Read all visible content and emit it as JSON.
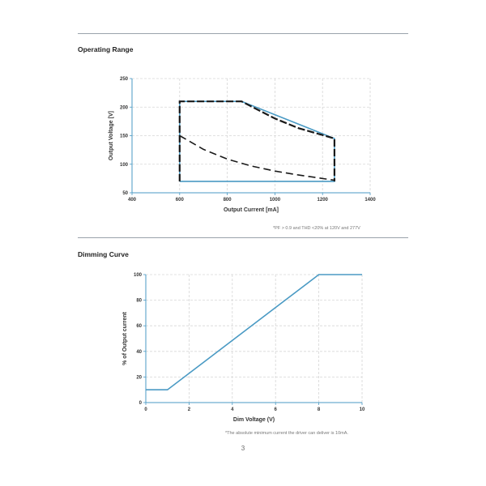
{
  "sections": {
    "operating": {
      "title": "Operating Range",
      "footnote": "*PF > 0.9 and THD <20% at 120V and 277V"
    },
    "dimming": {
      "title": "Dimming Curve",
      "footnote": "*The absolute minimum current the driver can deliver is 10mA."
    }
  },
  "page_number": "3",
  "colors": {
    "blue": "#4a9ac4",
    "black": "#1a1a1a",
    "grid": "#d6d6d6",
    "axis": "#4a9ac4"
  },
  "chart_data": [
    {
      "type": "line",
      "title": "",
      "xlabel": "Output Current [mA]",
      "ylabel": "Output Voltage [V]",
      "xlim": [
        400,
        1400
      ],
      "ylim": [
        50,
        250
      ],
      "xticks": [
        400,
        600,
        800,
        1000,
        1200,
        1400
      ],
      "yticks": [
        50,
        100,
        150,
        200,
        250
      ],
      "grid": true,
      "series": [
        {
          "style": "solid-blue",
          "x": [
            600,
            600,
            860,
            1250,
            1250,
            600
          ],
          "y": [
            70,
            210,
            210,
            145,
            70,
            70
          ]
        },
        {
          "style": "dashed-black-boundary",
          "x": [
            600,
            600,
            860,
            930,
            1000,
            1100,
            1250,
            1250
          ],
          "y": [
            70,
            210,
            210,
            195,
            180,
            163,
            145,
            70
          ]
        },
        {
          "style": "dashed-black-curve",
          "x": [
            600,
            700,
            800,
            900,
            1000,
            1100,
            1250
          ],
          "y": [
            150,
            126,
            109,
            97,
            88,
            81,
            72
          ]
        }
      ]
    },
    {
      "type": "line",
      "title": "",
      "xlabel": "Dim Voltage (V)",
      "ylabel": "% of Output current",
      "xlim": [
        0,
        10
      ],
      "ylim": [
        0,
        100
      ],
      "xticks": [
        0,
        2,
        4,
        6,
        8,
        10
      ],
      "yticks": [
        0,
        20,
        40,
        60,
        80,
        100
      ],
      "grid": true,
      "series": [
        {
          "style": "solid-blue",
          "x": [
            0,
            1,
            8,
            10
          ],
          "y": [
            10,
            10,
            100,
            100
          ]
        }
      ]
    }
  ]
}
